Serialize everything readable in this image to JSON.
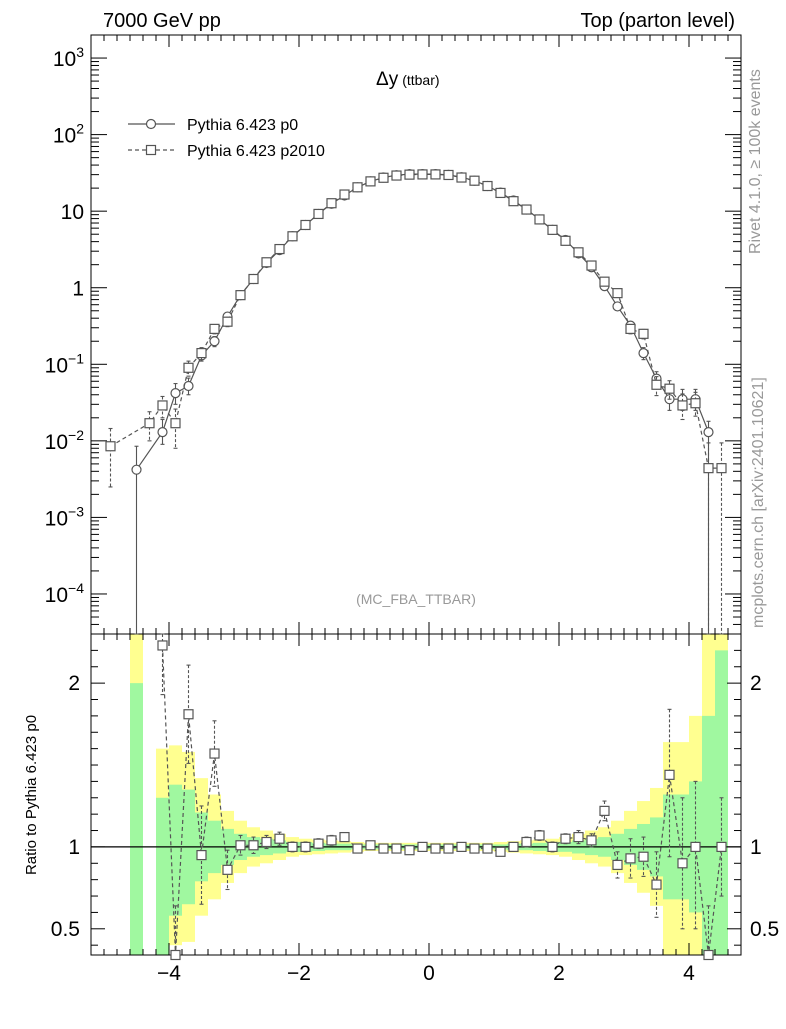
{
  "header": {
    "left": "7000 GeV pp",
    "right": "Top (parton level)"
  },
  "side_labels": {
    "rivet": "Rivet 4.1.0, ≥ 100k events",
    "mcplots": "mcplots.cern.ch [arXiv:2401.10621]"
  },
  "analysis_tag": "(MC_FBA_TTBAR)",
  "colors": {
    "series_line": "#555555",
    "reference_line": "#000000",
    "band_green": "#a0f8a0",
    "band_yellow": "#ffff90",
    "watermark": "#999999"
  },
  "chart_data": [
    {
      "type": "line",
      "title": "Δy",
      "title_suffix": "(ttbar)",
      "xlabel": "",
      "ylabel": "",
      "yscale": "log",
      "xlim": [
        -5.2,
        4.8
      ],
      "ylim": [
        3e-05,
        2000
      ],
      "yticks": [
        {
          "value": 1000,
          "label": "10",
          "sup": "3"
        },
        {
          "value": 100,
          "label": "10",
          "sup": "2"
        },
        {
          "value": 10,
          "label": "10",
          "sup": ""
        },
        {
          "value": 1,
          "label": "1",
          "sup": ""
        },
        {
          "value": 0.1,
          "label": "10",
          "sup": "−1"
        },
        {
          "value": 0.01,
          "label": "10",
          "sup": "−2"
        },
        {
          "value": 0.001,
          "label": "10",
          "sup": "−3"
        },
        {
          "value": 0.0001,
          "label": "10",
          "sup": "−4"
        }
      ],
      "legend": {
        "position": "top-left",
        "entries": [
          "Pythia 6.423 p0",
          "Pythia 6.423 p2010"
        ]
      },
      "series": [
        {
          "name": "Pythia 6.423 p0",
          "marker": "circle",
          "dash": "solid",
          "x": [
            -4.5,
            -4.1,
            -3.9,
            -3.7,
            -3.5,
            -3.3,
            -3.1,
            -2.9,
            -2.7,
            -2.5,
            -2.3,
            -2.1,
            -1.9,
            -1.7,
            -1.5,
            -1.3,
            -1.1,
            -0.9,
            -0.7,
            -0.5,
            -0.3,
            -0.1,
            0.1,
            0.3,
            0.5,
            0.7,
            0.9,
            1.1,
            1.3,
            1.5,
            1.7,
            1.9,
            2.1,
            2.3,
            2.5,
            2.7,
            2.9,
            3.1,
            3.3,
            3.5,
            3.7,
            3.9,
            4.1,
            4.3
          ],
          "y": [
            0.0042,
            0.013,
            0.042,
            0.052,
            0.13,
            0.2,
            0.42,
            0.8,
            1.3,
            2.1,
            3.1,
            4.7,
            6.6,
            9.2,
            12.5,
            16,
            20.5,
            24.5,
            27.5,
            29.5,
            30.5,
            30.5,
            30.5,
            29.8,
            27.8,
            25,
            21.3,
            17.5,
            13.8,
            10.5,
            7.8,
            5.7,
            4.2,
            2.8,
            1.85,
            1.05,
            0.57,
            0.32,
            0.14,
            0.065,
            0.035,
            0.035,
            0.035,
            0.013
          ],
          "err_lo": [
            0.0042,
            0.004,
            0.012,
            0.012,
            0.02,
            0.03,
            0.05,
            0.05,
            0.07,
            0.1,
            0.12,
            0.15,
            0.18,
            0.2,
            0.25,
            0.3,
            0.3,
            0.35,
            0.35,
            0.35,
            0.4,
            0.4,
            0.4,
            0.4,
            0.35,
            0.35,
            0.3,
            0.3,
            0.3,
            0.25,
            0.2,
            0.18,
            0.15,
            0.12,
            0.1,
            0.07,
            0.05,
            0.04,
            0.025,
            0.015,
            0.01,
            0.01,
            0.01,
            0.013
          ],
          "err_hi": [
            0.0043,
            0.006,
            0.014,
            0.014,
            0.02,
            0.03,
            0.05,
            0.05,
            0.07,
            0.1,
            0.12,
            0.15,
            0.18,
            0.2,
            0.25,
            0.3,
            0.3,
            0.35,
            0.35,
            0.35,
            0.4,
            0.4,
            0.4,
            0.4,
            0.35,
            0.35,
            0.3,
            0.3,
            0.3,
            0.25,
            0.2,
            0.18,
            0.15,
            0.12,
            0.1,
            0.07,
            0.05,
            0.04,
            0.025,
            0.015,
            0.012,
            0.012,
            0.012,
            0.005
          ]
        },
        {
          "name": "Pythia 6.423 p2010",
          "marker": "square",
          "dash": "dashed",
          "x": [
            -4.9,
            -4.3,
            -4.1,
            -3.9,
            -3.7,
            -3.5,
            -3.3,
            -3.1,
            -2.9,
            -2.7,
            -2.5,
            -2.3,
            -2.1,
            -1.9,
            -1.7,
            -1.5,
            -1.3,
            -1.1,
            -0.9,
            -0.7,
            -0.5,
            -0.3,
            -0.1,
            0.1,
            0.3,
            0.5,
            0.7,
            0.9,
            1.1,
            1.3,
            1.5,
            1.7,
            1.9,
            2.1,
            2.3,
            2.5,
            2.7,
            2.9,
            3.1,
            3.3,
            3.5,
            3.7,
            3.9,
            4.1,
            4.3,
            4.5
          ],
          "y": [
            0.0085,
            0.017,
            0.029,
            0.017,
            0.09,
            0.14,
            0.29,
            0.36,
            0.8,
            1.3,
            2.15,
            3.2,
            4.7,
            6.6,
            9.2,
            12.7,
            16.5,
            20.5,
            24.5,
            27.3,
            29.2,
            30,
            30.2,
            30.2,
            29.7,
            27.5,
            25,
            21.3,
            17.3,
            13.5,
            10.5,
            7.8,
            5.7,
            4.1,
            2.9,
            1.95,
            1.2,
            0.85,
            0.29,
            0.25,
            0.054,
            0.048,
            0.029,
            0.031,
            0.0044,
            0.0044
          ],
          "err_lo": [
            0.006,
            0.007,
            0.009,
            0.009,
            0.02,
            0.025,
            0.04,
            0.05,
            0.06,
            0.08,
            0.1,
            0.12,
            0.15,
            0.18,
            0.2,
            0.25,
            0.3,
            0.3,
            0.35,
            0.35,
            0.35,
            0.4,
            0.4,
            0.4,
            0.4,
            0.35,
            0.35,
            0.3,
            0.3,
            0.3,
            0.25,
            0.2,
            0.18,
            0.15,
            0.12,
            0.1,
            0.08,
            0.06,
            0.04,
            0.035,
            0.015,
            0.013,
            0.01,
            0.01,
            0.0044,
            0.0044
          ],
          "err_hi": [
            0.006,
            0.007,
            0.009,
            0.009,
            0.02,
            0.025,
            0.04,
            0.05,
            0.06,
            0.08,
            0.1,
            0.12,
            0.15,
            0.18,
            0.2,
            0.25,
            0.3,
            0.3,
            0.35,
            0.35,
            0.35,
            0.4,
            0.4,
            0.4,
            0.4,
            0.35,
            0.35,
            0.3,
            0.3,
            0.3,
            0.25,
            0.2,
            0.18,
            0.15,
            0.12,
            0.1,
            0.08,
            0.06,
            0.04,
            0.035,
            0.015,
            0.013,
            0.012,
            0.012,
            0.005,
            0.005
          ]
        }
      ]
    },
    {
      "type": "line",
      "title": "",
      "xlabel": "",
      "ylabel": "Ratio to Pythia 6.423 p0",
      "yscale": "linear",
      "xlim": [
        -5.2,
        4.8
      ],
      "ylim": [
        0.34,
        2.3
      ],
      "xticks": [
        {
          "value": -4,
          "label": "−4"
        },
        {
          "value": -2,
          "label": "−2"
        },
        {
          "value": 0,
          "label": "0"
        },
        {
          "value": 2,
          "label": "2"
        },
        {
          "value": 4,
          "label": "4"
        }
      ],
      "yticks": [
        {
          "value": 2,
          "label": "2"
        },
        {
          "value": 1,
          "label": "1"
        },
        {
          "value": 0.5,
          "label": "0.5"
        }
      ],
      "reference_line": 1,
      "bands": [
        {
          "x0": -4.6,
          "x1": -4.4,
          "g_lo": 0.34,
          "g_hi": 2.0,
          "y_lo": 0.34,
          "y_hi": 2.3
        },
        {
          "x0": -4.2,
          "x1": -4.0,
          "g_lo": 0.34,
          "g_hi": 1.3,
          "y_lo": 0.34,
          "y_hi": 1.6
        },
        {
          "x0": -4.0,
          "x1": -3.8,
          "g_lo": 0.58,
          "g_hi": 1.38,
          "y_lo": 0.4,
          "y_hi": 1.62
        },
        {
          "x0": -3.8,
          "x1": -3.6,
          "g_lo": 0.65,
          "g_hi": 1.35,
          "y_lo": 0.42,
          "y_hi": 1.58
        },
        {
          "x0": -3.6,
          "x1": -3.4,
          "g_lo": 0.79,
          "g_hi": 1.21,
          "y_lo": 0.58,
          "y_hi": 1.42
        },
        {
          "x0": -3.4,
          "x1": -3.2,
          "g_lo": 0.84,
          "g_hi": 1.16,
          "y_lo": 0.68,
          "y_hi": 1.32
        },
        {
          "x0": -3.2,
          "x1": -3.0,
          "g_lo": 0.89,
          "g_hi": 1.11,
          "y_lo": 0.78,
          "y_hi": 1.22
        },
        {
          "x0": -3.0,
          "x1": -2.8,
          "g_lo": 0.92,
          "g_hi": 1.08,
          "y_lo": 0.84,
          "y_hi": 1.16
        },
        {
          "x0": -2.8,
          "x1": -2.6,
          "g_lo": 0.94,
          "g_hi": 1.06,
          "y_lo": 0.88,
          "y_hi": 1.12
        },
        {
          "x0": -2.6,
          "x1": -2.4,
          "g_lo": 0.95,
          "g_hi": 1.05,
          "y_lo": 0.9,
          "y_hi": 1.1
        },
        {
          "x0": -2.4,
          "x1": -2.2,
          "g_lo": 0.96,
          "g_hi": 1.04,
          "y_lo": 0.92,
          "y_hi": 1.08
        },
        {
          "x0": -2.2,
          "x1": -2.0,
          "g_lo": 0.97,
          "g_hi": 1.03,
          "y_lo": 0.94,
          "y_hi": 1.06
        },
        {
          "x0": -2.0,
          "x1": -1.8,
          "g_lo": 0.97,
          "g_hi": 1.03,
          "y_lo": 0.95,
          "y_hi": 1.05
        },
        {
          "x0": -1.8,
          "x1": -1.6,
          "g_lo": 0.975,
          "g_hi": 1.025,
          "y_lo": 0.955,
          "y_hi": 1.045
        },
        {
          "x0": -1.6,
          "x1": -1.4,
          "g_lo": 0.98,
          "g_hi": 1.02,
          "y_lo": 0.96,
          "y_hi": 1.04
        },
        {
          "x0": -1.4,
          "x1": -1.2,
          "g_lo": 0.98,
          "g_hi": 1.02,
          "y_lo": 0.965,
          "y_hi": 1.035
        },
        {
          "x0": -1.2,
          "x1": -1.0,
          "g_lo": 0.985,
          "g_hi": 1.015,
          "y_lo": 0.97,
          "y_hi": 1.03
        },
        {
          "x0": -1.0,
          "x1": 1.0,
          "g_lo": 0.985,
          "g_hi": 1.015,
          "y_lo": 0.975,
          "y_hi": 1.025
        },
        {
          "x0": 1.0,
          "x1": 1.2,
          "g_lo": 0.985,
          "g_hi": 1.015,
          "y_lo": 0.97,
          "y_hi": 1.03
        },
        {
          "x0": 1.2,
          "x1": 1.4,
          "g_lo": 0.98,
          "g_hi": 1.02,
          "y_lo": 0.965,
          "y_hi": 1.035
        },
        {
          "x0": 1.4,
          "x1": 1.6,
          "g_lo": 0.98,
          "g_hi": 1.02,
          "y_lo": 0.96,
          "y_hi": 1.04
        },
        {
          "x0": 1.6,
          "x1": 1.8,
          "g_lo": 0.975,
          "g_hi": 1.025,
          "y_lo": 0.955,
          "y_hi": 1.045
        },
        {
          "x0": 1.8,
          "x1": 2.0,
          "g_lo": 0.97,
          "g_hi": 1.03,
          "y_lo": 0.95,
          "y_hi": 1.05
        },
        {
          "x0": 2.0,
          "x1": 2.2,
          "g_lo": 0.97,
          "g_hi": 1.03,
          "y_lo": 0.94,
          "y_hi": 1.06
        },
        {
          "x0": 2.2,
          "x1": 2.4,
          "g_lo": 0.96,
          "g_hi": 1.04,
          "y_lo": 0.92,
          "y_hi": 1.08
        },
        {
          "x0": 2.4,
          "x1": 2.6,
          "g_lo": 0.95,
          "g_hi": 1.05,
          "y_lo": 0.9,
          "y_hi": 1.1
        },
        {
          "x0": 2.6,
          "x1": 2.8,
          "g_lo": 0.94,
          "g_hi": 1.06,
          "y_lo": 0.88,
          "y_hi": 1.12
        },
        {
          "x0": 2.8,
          "x1": 3.0,
          "g_lo": 0.92,
          "g_hi": 1.08,
          "y_lo": 0.84,
          "y_hi": 1.16
        },
        {
          "x0": 3.0,
          "x1": 3.2,
          "g_lo": 0.89,
          "g_hi": 1.11,
          "y_lo": 0.78,
          "y_hi": 1.22
        },
        {
          "x0": 3.2,
          "x1": 3.4,
          "g_lo": 0.86,
          "g_hi": 1.14,
          "y_lo": 0.72,
          "y_hi": 1.28
        },
        {
          "x0": 3.4,
          "x1": 3.6,
          "g_lo": 0.82,
          "g_hi": 1.18,
          "y_lo": 0.64,
          "y_hi": 1.36
        },
        {
          "x0": 3.6,
          "x1": 3.8,
          "g_lo": 0.68,
          "g_hi": 1.32,
          "y_lo": 0.34,
          "y_hi": 1.64
        },
        {
          "x0": 3.8,
          "x1": 4.0,
          "g_lo": 0.68,
          "g_hi": 1.32,
          "y_lo": 0.34,
          "y_hi": 1.64
        },
        {
          "x0": 4.0,
          "x1": 4.2,
          "g_lo": 0.6,
          "g_hi": 1.4,
          "y_lo": 0.34,
          "y_hi": 1.8
        },
        {
          "x0": 4.2,
          "x1": 4.4,
          "g_lo": 0.34,
          "g_hi": 1.8,
          "y_lo": 0.34,
          "y_hi": 2.3
        },
        {
          "x0": 4.4,
          "x1": 4.6,
          "g_lo": 0.34,
          "g_hi": 2.2,
          "y_lo": 0.34,
          "y_hi": 2.3
        }
      ],
      "series": [
        {
          "name": "Pythia 6.423 p2010 / Pythia 6.423 p0",
          "marker": "square",
          "dash": "dashed",
          "x": [
            -4.1,
            -3.9,
            -3.7,
            -3.5,
            -3.3,
            -3.1,
            -2.9,
            -2.7,
            -2.5,
            -2.3,
            -2.1,
            -1.9,
            -1.7,
            -1.5,
            -1.3,
            -1.1,
            -0.9,
            -0.7,
            -0.5,
            -0.3,
            -0.1,
            0.1,
            0.3,
            0.5,
            0.7,
            0.9,
            1.1,
            1.3,
            1.5,
            1.7,
            1.9,
            2.1,
            2.3,
            2.5,
            2.7,
            2.9,
            3.1,
            3.3,
            3.5,
            3.7,
            3.9,
            4.1,
            4.3,
            4.5
          ],
          "y": [
            2.23,
            0.34,
            1.81,
            0.95,
            1.57,
            0.86,
            1.01,
            1.01,
            1.03,
            1.05,
            1.0,
            1.0,
            1.02,
            1.04,
            1.06,
            0.99,
            1.01,
            0.99,
            0.99,
            0.98,
            1.0,
            0.99,
            0.99,
            1.0,
            0.99,
            0.99,
            0.97,
            1.0,
            1.03,
            1.07,
            1.0,
            1.05,
            1.06,
            1.04,
            1.22,
            0.89,
            0.93,
            0.94,
            0.77,
            1.44,
            0.9,
            1.0,
            0.34,
            1.0
          ],
          "err_lo": [
            0.3,
            0.3,
            0.3,
            0.3,
            0.2,
            0.12,
            0.06,
            0.05,
            0.04,
            0.04,
            0.03,
            0.03,
            0.03,
            0.03,
            0.02,
            0.02,
            0.02,
            0.02,
            0.02,
            0.02,
            0.02,
            0.02,
            0.02,
            0.02,
            0.02,
            0.02,
            0.02,
            0.02,
            0.03,
            0.03,
            0.03,
            0.03,
            0.04,
            0.04,
            0.06,
            0.08,
            0.12,
            0.12,
            0.2,
            0.5,
            0.4,
            0.5,
            0.3,
            0.3
          ],
          "err_hi": [
            0.3,
            0.3,
            0.3,
            0.3,
            0.2,
            0.12,
            0.06,
            0.05,
            0.04,
            0.04,
            0.03,
            0.03,
            0.03,
            0.03,
            0.02,
            0.02,
            0.02,
            0.02,
            0.02,
            0.02,
            0.02,
            0.02,
            0.02,
            0.02,
            0.02,
            0.02,
            0.02,
            0.02,
            0.03,
            0.03,
            0.03,
            0.03,
            0.04,
            0.04,
            0.06,
            0.08,
            0.12,
            0.12,
            0.2,
            0.4,
            0.4,
            0.4,
            0.3,
            0.3
          ]
        }
      ]
    }
  ]
}
